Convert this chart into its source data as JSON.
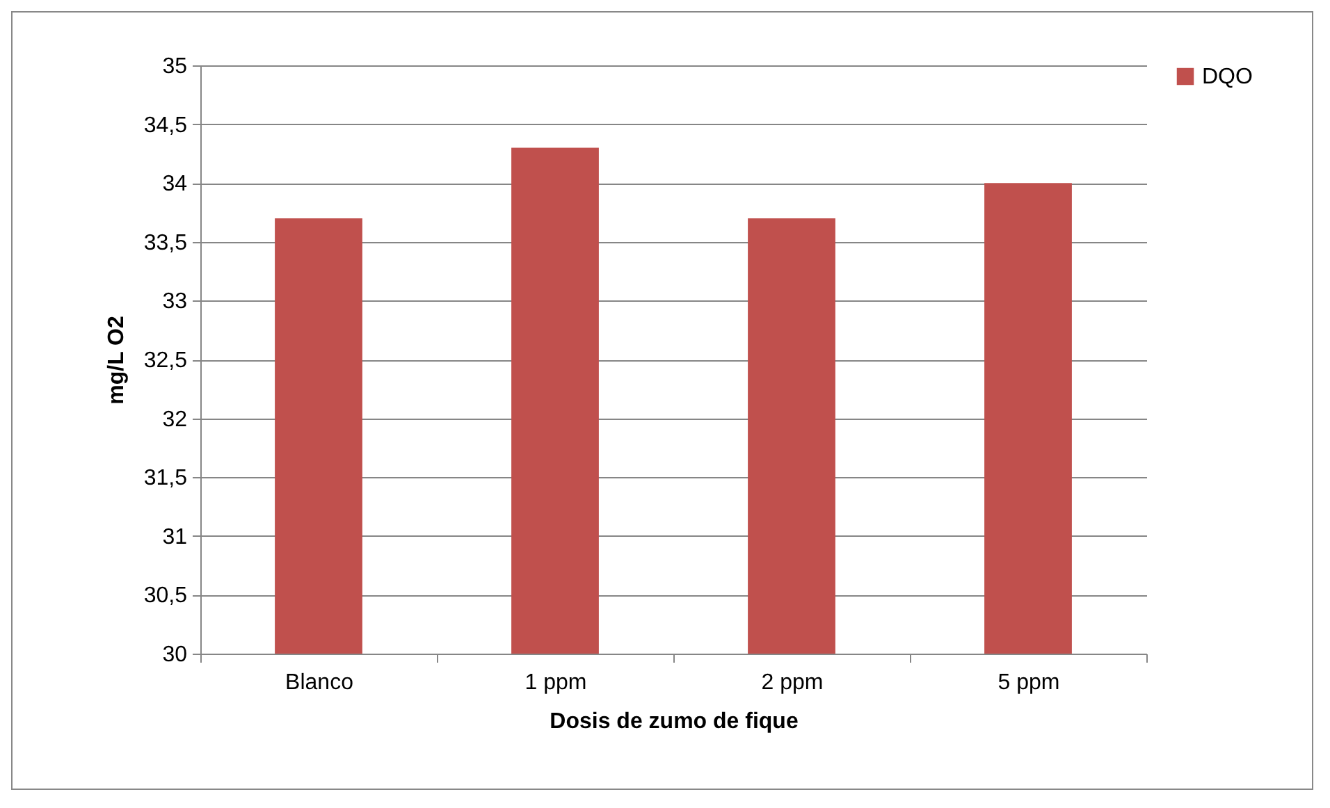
{
  "chart_data": {
    "type": "bar",
    "xlabel": "Dosis de zumo de fique",
    "ylabel": "mg/L O2",
    "categories": [
      "Blanco",
      "1 ppm",
      "2 ppm",
      "5 ppm"
    ],
    "series": [
      {
        "name": "DQO",
        "color": "#c0504d",
        "values": [
          33.7,
          34.3,
          33.7,
          34.0
        ]
      }
    ],
    "ylim": [
      30,
      35
    ],
    "yticks": [
      30,
      {
        "value": 30.5,
        "label": "30,5"
      },
      31,
      {
        "value": 31.5,
        "label": "31,5"
      },
      32,
      {
        "value": 32.5,
        "label": "32,5"
      },
      33,
      {
        "value": 33.5,
        "label": "33,5"
      },
      34,
      {
        "value": 34.5,
        "label": "34,5"
      },
      35
    ],
    "grid": "y",
    "legend": "right"
  }
}
